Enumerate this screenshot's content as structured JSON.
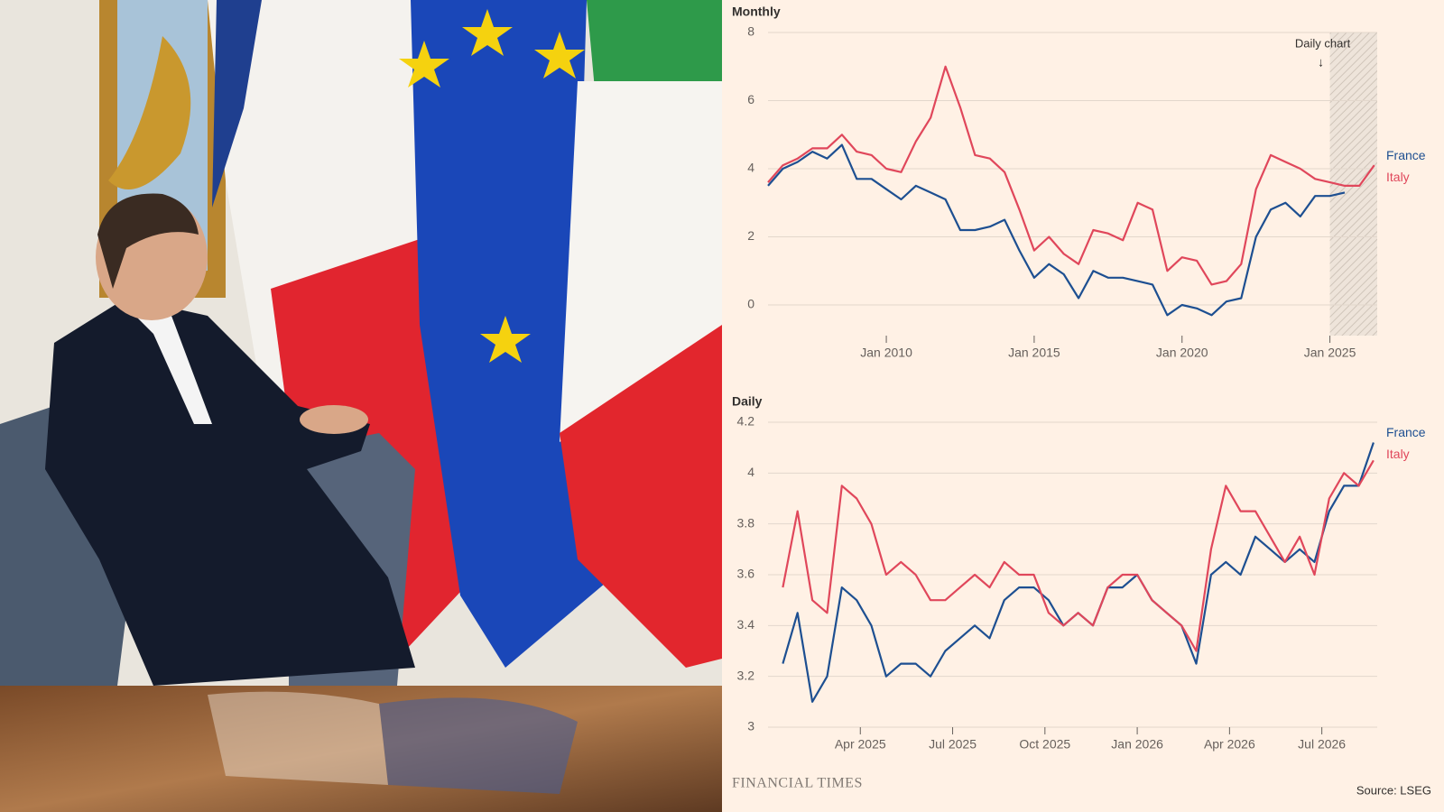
{
  "chart_data": [
    {
      "type": "line",
      "title": "Monthly",
      "annotation": "Daily chart",
      "annotation_arrow": "↓",
      "x": [
        2006,
        2006.5,
        2007,
        2007.5,
        2008,
        2008.5,
        2009,
        2009.5,
        2010,
        2010.5,
        2011,
        2011.5,
        2012,
        2012.5,
        2013,
        2013.5,
        2014,
        2014.5,
        2015,
        2015.5,
        2016,
        2016.5,
        2017,
        2017.5,
        2018,
        2018.5,
        2019,
        2019.5,
        2020,
        2020.5,
        2021,
        2021.5,
        2022,
        2022.5,
        2023,
        2023.5,
        2024,
        2024.5,
        2025,
        2025.5,
        2026,
        2026.5
      ],
      "series": [
        {
          "name": "France",
          "color": "#1d4f91",
          "values": [
            3.5,
            4.0,
            4.2,
            4.5,
            4.3,
            4.7,
            3.7,
            3.7,
            3.4,
            3.1,
            3.5,
            3.3,
            3.1,
            2.2,
            2.2,
            2.3,
            2.5,
            1.6,
            0.8,
            1.2,
            0.9,
            0.2,
            1.0,
            0.8,
            0.8,
            0.7,
            0.6,
            -0.3,
            0.0,
            -0.1,
            -0.3,
            0.1,
            0.2,
            2.0,
            2.8,
            3.0,
            2.6,
            3.2,
            3.2,
            3.3,
            null,
            null
          ]
        },
        {
          "name": "Italy",
          "color": "#e0475b",
          "values": [
            3.6,
            4.1,
            4.3,
            4.6,
            4.6,
            5.0,
            4.5,
            4.4,
            4.0,
            3.9,
            4.8,
            5.5,
            7.0,
            5.8,
            4.4,
            4.3,
            3.9,
            2.8,
            1.6,
            2.0,
            1.5,
            1.2,
            2.2,
            2.1,
            1.9,
            3.0,
            2.8,
            1.0,
            1.4,
            1.3,
            0.6,
            0.7,
            1.2,
            3.4,
            4.4,
            4.2,
            4.0,
            3.7,
            3.6,
            3.5,
            3.5,
            4.1
          ]
        }
      ],
      "highlight": [
        2025,
        2026.6
      ],
      "xlim": [
        2006,
        2026.6
      ],
      "xticks": [
        {
          "value": 2010,
          "label": "Jan 2010"
        },
        {
          "value": 2015,
          "label": "Jan 2015"
        },
        {
          "value": 2020,
          "label": "Jan 2020"
        },
        {
          "value": 2025,
          "label": "Jan 2025"
        }
      ],
      "ylim": [
        -0.9,
        8
      ],
      "yticks": [
        0,
        2,
        4,
        6,
        8
      ],
      "grid": true
    },
    {
      "type": "line",
      "title": "Daily",
      "x": [
        2025.04,
        2025.08,
        2025.12,
        2025.16,
        2025.2,
        2025.24,
        2025.28,
        2025.32,
        2025.36,
        2025.4,
        2025.44,
        2025.48,
        2025.52,
        2025.56,
        2025.6,
        2025.64,
        2025.68,
        2025.72,
        2025.76,
        2025.8,
        2025.84,
        2025.88,
        2025.92,
        2025.96,
        2026,
        2026.04,
        2026.08,
        2026.12,
        2026.16,
        2026.2,
        2026.24,
        2026.28,
        2026.32,
        2026.36,
        2026.4,
        2026.44,
        2026.48,
        2026.52,
        2026.56,
        2026.6,
        2026.64
      ],
      "series": [
        {
          "name": "France",
          "color": "#1d4f91",
          "values": [
            3.25,
            3.45,
            3.1,
            3.2,
            3.55,
            3.5,
            3.4,
            3.2,
            3.25,
            3.25,
            3.2,
            3.3,
            3.35,
            3.4,
            3.35,
            3.5,
            3.55,
            3.55,
            3.5,
            3.4,
            3.45,
            3.4,
            3.55,
            3.55,
            3.6,
            3.5,
            3.45,
            3.4,
            3.25,
            3.6,
            3.65,
            3.6,
            3.75,
            3.7,
            3.65,
            3.7,
            3.65,
            3.85,
            3.95,
            3.95,
            4.12
          ]
        },
        {
          "name": "Italy",
          "color": "#e0475b",
          "values": [
            3.55,
            3.85,
            3.5,
            3.45,
            3.95,
            3.9,
            3.8,
            3.6,
            3.65,
            3.6,
            3.5,
            3.5,
            3.55,
            3.6,
            3.55,
            3.65,
            3.6,
            3.6,
            3.45,
            3.4,
            3.45,
            3.4,
            3.55,
            3.6,
            3.6,
            3.5,
            3.45,
            3.4,
            3.3,
            3.7,
            3.95,
            3.85,
            3.85,
            3.75,
            3.65,
            3.75,
            3.6,
            3.9,
            4.0,
            3.95,
            4.05
          ]
        }
      ],
      "xlim": [
        2025.0,
        2026.65
      ],
      "xticks": [
        {
          "value": 2025.25,
          "label": "Apr 2025"
        },
        {
          "value": 2025.5,
          "label": "Jul 2025"
        },
        {
          "value": 2025.75,
          "label": "Oct 2025"
        },
        {
          "value": 2026,
          "label": "Jan 2026"
        },
        {
          "value": 2026.25,
          "label": "Apr 2026"
        },
        {
          "value": 2026.5,
          "label": "Jul 2026"
        }
      ],
      "ylim": [
        3,
        4.2
      ],
      "yticks": [
        3,
        3.2,
        3.4,
        3.6,
        3.8,
        4,
        4.2
      ],
      "grid": true
    }
  ],
  "footer": {
    "brand": "FINANCIAL TIMES",
    "source": "Source: LSEG"
  }
}
